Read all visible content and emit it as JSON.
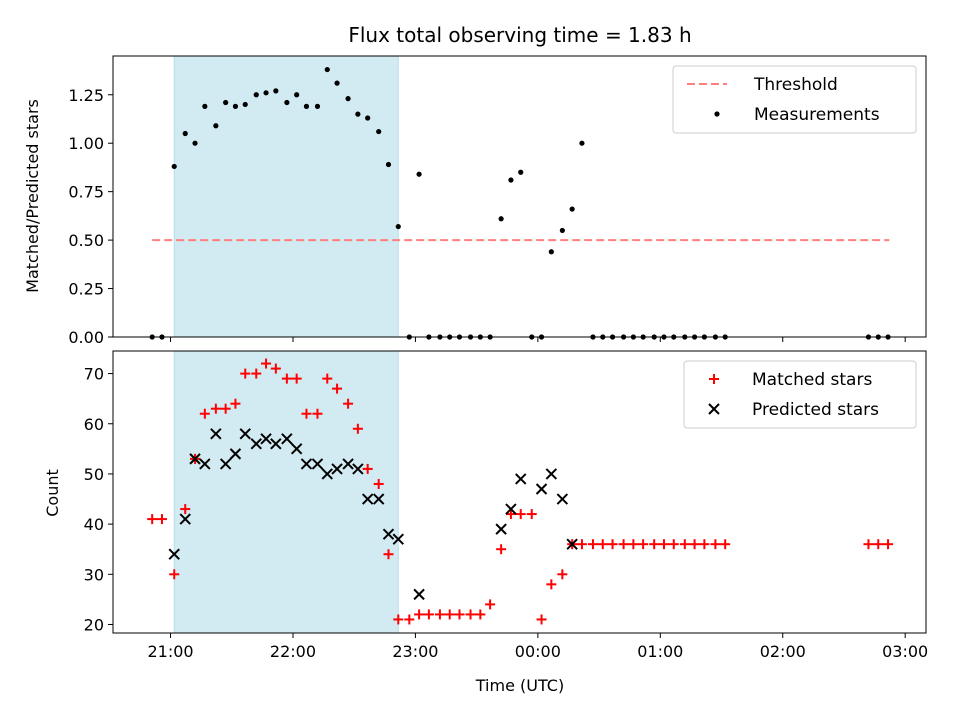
{
  "chart_data": [
    {
      "type": "scatter",
      "panel": "top",
      "title": "Flux total observing time = 1.83 h",
      "xlabel": "",
      "ylabel": "Matched/Predicted stars",
      "ylim": [
        0,
        1.45
      ],
      "xlim": [
        20.53,
        27.17
      ],
      "x_unit": "hours UTC from start date (x > 24 = next day)",
      "yticks": [
        0,
        0.25,
        0.5,
        0.75,
        1.0,
        1.25
      ],
      "ytick_labels": [
        "0.00",
        "0.25",
        "0.50",
        "0.75",
        "1.00",
        "1.25"
      ],
      "shaded_region": {
        "x0": 21.03,
        "x1": 22.86,
        "color": "#add8e6"
      },
      "threshold": {
        "name": "Threshold",
        "value": 0.5,
        "x0": 20.85,
        "x1": 26.87,
        "color": "#ff7f7f"
      },
      "series": [
        {
          "name": "Measurements",
          "color": "#000000",
          "marker": "dot",
          "points": [
            [
              20.85,
              0
            ],
            [
              20.93,
              0
            ],
            [
              21.03,
              0.88
            ],
            [
              21.12,
              1.05
            ],
            [
              21.2,
              1.0
            ],
            [
              21.28,
              1.19
            ],
            [
              21.37,
              1.09
            ],
            [
              21.45,
              1.21
            ],
            [
              21.53,
              1.19
            ],
            [
              21.61,
              1.2
            ],
            [
              21.7,
              1.25
            ],
            [
              21.78,
              1.26
            ],
            [
              21.86,
              1.27
            ],
            [
              21.95,
              1.21
            ],
            [
              22.03,
              1.25
            ],
            [
              22.11,
              1.19
            ],
            [
              22.2,
              1.19
            ],
            [
              22.28,
              1.38
            ],
            [
              22.36,
              1.31
            ],
            [
              22.45,
              1.23
            ],
            [
              22.53,
              1.15
            ],
            [
              22.61,
              1.13
            ],
            [
              22.7,
              1.06
            ],
            [
              22.78,
              0.89
            ],
            [
              22.86,
              0.57
            ],
            [
              22.95,
              0
            ],
            [
              23.03,
              0.84
            ],
            [
              23.11,
              0
            ],
            [
              23.2,
              0
            ],
            [
              23.28,
              0
            ],
            [
              23.36,
              0
            ],
            [
              23.45,
              0
            ],
            [
              23.53,
              0
            ],
            [
              23.61,
              0
            ],
            [
              23.7,
              0.61
            ],
            [
              23.78,
              0.81
            ],
            [
              23.86,
              0.85
            ],
            [
              23.95,
              0
            ],
            [
              24.03,
              0
            ],
            [
              24.11,
              0.44
            ],
            [
              24.2,
              0.55
            ],
            [
              24.28,
              0.66
            ],
            [
              24.36,
              1.0
            ],
            [
              24.45,
              0
            ],
            [
              24.53,
              0
            ],
            [
              24.61,
              0
            ],
            [
              24.7,
              0
            ],
            [
              24.78,
              0
            ],
            [
              24.86,
              0
            ],
            [
              24.95,
              0
            ],
            [
              25.03,
              0
            ],
            [
              25.11,
              0
            ],
            [
              25.2,
              0
            ],
            [
              25.28,
              0
            ],
            [
              25.36,
              0
            ],
            [
              25.45,
              0
            ],
            [
              25.53,
              0
            ],
            [
              26.7,
              0
            ],
            [
              26.78,
              0
            ],
            [
              26.86,
              0
            ]
          ]
        }
      ],
      "legend": {
        "placement": "top-right",
        "entries": [
          "Threshold",
          "Measurements"
        ]
      }
    },
    {
      "type": "scatter",
      "panel": "bottom",
      "title": "",
      "xlabel": "Time (UTC)",
      "ylabel": "Count",
      "ylim": [
        18.3,
        74.5
      ],
      "xlim": [
        20.53,
        27.17
      ],
      "yticks": [
        20,
        30,
        40,
        50,
        60,
        70
      ],
      "ytick_labels": [
        "20",
        "30",
        "40",
        "50",
        "60",
        "70"
      ],
      "xticks": [
        21,
        22,
        23,
        24,
        25,
        26,
        27
      ],
      "xtick_labels": [
        "21:00",
        "22:00",
        "23:00",
        "00:00",
        "01:00",
        "02:00",
        "03:00"
      ],
      "shaded_region": {
        "x0": 21.03,
        "x1": 22.86,
        "color": "#add8e6"
      },
      "series": [
        {
          "name": "Matched stars",
          "color": "#ff0000",
          "marker": "plus",
          "points": [
            [
              20.85,
              41
            ],
            [
              20.93,
              41
            ],
            [
              21.03,
              30
            ],
            [
              21.12,
              43
            ],
            [
              21.2,
              53
            ],
            [
              21.28,
              62
            ],
            [
              21.37,
              63
            ],
            [
              21.45,
              63
            ],
            [
              21.53,
              64
            ],
            [
              21.61,
              70
            ],
            [
              21.7,
              70
            ],
            [
              21.78,
              72
            ],
            [
              21.86,
              71
            ],
            [
              21.95,
              69
            ],
            [
              22.03,
              69
            ],
            [
              22.11,
              62
            ],
            [
              22.2,
              62
            ],
            [
              22.28,
              69
            ],
            [
              22.36,
              67
            ],
            [
              22.45,
              64
            ],
            [
              22.53,
              59
            ],
            [
              22.61,
              51
            ],
            [
              22.7,
              48
            ],
            [
              22.78,
              34
            ],
            [
              22.86,
              21
            ],
            [
              22.95,
              21
            ],
            [
              23.03,
              22
            ],
            [
              23.11,
              22
            ],
            [
              23.2,
              22
            ],
            [
              23.28,
              22
            ],
            [
              23.36,
              22
            ],
            [
              23.45,
              22
            ],
            [
              23.53,
              22
            ],
            [
              23.61,
              24
            ],
            [
              23.7,
              35
            ],
            [
              23.78,
              42
            ],
            [
              23.86,
              42
            ],
            [
              23.95,
              42
            ],
            [
              24.03,
              21
            ],
            [
              24.11,
              28
            ],
            [
              24.2,
              30
            ],
            [
              24.28,
              36
            ],
            [
              24.36,
              36
            ],
            [
              24.45,
              36
            ],
            [
              24.53,
              36
            ],
            [
              24.61,
              36
            ],
            [
              24.7,
              36
            ],
            [
              24.78,
              36
            ],
            [
              24.86,
              36
            ],
            [
              24.95,
              36
            ],
            [
              25.03,
              36
            ],
            [
              25.11,
              36
            ],
            [
              25.2,
              36
            ],
            [
              25.28,
              36
            ],
            [
              25.36,
              36
            ],
            [
              25.45,
              36
            ],
            [
              25.53,
              36
            ],
            [
              26.7,
              36
            ],
            [
              26.78,
              36
            ],
            [
              26.86,
              36
            ]
          ]
        },
        {
          "name": "Predicted stars",
          "color": "#000000",
          "marker": "x",
          "points": [
            [
              21.03,
              34
            ],
            [
              21.12,
              41
            ],
            [
              21.2,
              53
            ],
            [
              21.28,
              52
            ],
            [
              21.37,
              58
            ],
            [
              21.45,
              52
            ],
            [
              21.53,
              54
            ],
            [
              21.61,
              58
            ],
            [
              21.7,
              56
            ],
            [
              21.78,
              57
            ],
            [
              21.86,
              56
            ],
            [
              21.95,
              57
            ],
            [
              22.03,
              55
            ],
            [
              22.11,
              52
            ],
            [
              22.2,
              52
            ],
            [
              22.28,
              50
            ],
            [
              22.36,
              51
            ],
            [
              22.45,
              52
            ],
            [
              22.53,
              51
            ],
            [
              22.61,
              45
            ],
            [
              22.7,
              45
            ],
            [
              22.78,
              38
            ],
            [
              22.86,
              37
            ],
            [
              23.03,
              26
            ],
            [
              23.7,
              39
            ],
            [
              23.78,
              43
            ],
            [
              23.86,
              49
            ],
            [
              24.03,
              47
            ],
            [
              24.11,
              50
            ],
            [
              24.2,
              45
            ],
            [
              24.28,
              36
            ]
          ]
        }
      ],
      "legend": {
        "placement": "top-right",
        "entries": [
          "Matched stars",
          "Predicted stars"
        ]
      }
    }
  ]
}
